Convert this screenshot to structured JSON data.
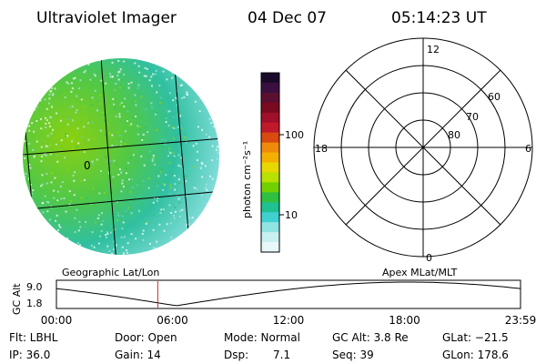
{
  "header": {
    "instrument": "Ultraviolet Imager",
    "date": "04 Dec 07",
    "time": "05:14:23 UT"
  },
  "geo_map": {
    "annotation": "0"
  },
  "colorbar": {
    "unit_label": "photon cm⁻²s⁻¹",
    "ticks": [
      "100",
      "10"
    ],
    "colors": [
      "#1a0a2a",
      "#3a1040",
      "#5a1030",
      "#7a0a20",
      "#a0102a",
      "#c01a2a",
      "#d84a10",
      "#f08a0a",
      "#f4b000",
      "#e8d800",
      "#b8e000",
      "#70d000",
      "#30c040",
      "#20c090",
      "#40d0d0",
      "#90e4e4",
      "#c8f0f0",
      "#e8f8f8"
    ]
  },
  "polar": {
    "mlt_labels": [
      "12",
      "18",
      "6",
      "0"
    ],
    "lat_labels": [
      "60",
      "70",
      "80"
    ]
  },
  "timeline": {
    "left_label": "Geographic Lat/Lon",
    "right_label": "Apex MLat/MLT",
    "y_axis_label": "GC Alt",
    "y_ticks": [
      "9.0",
      "1.8"
    ],
    "x_ticks": [
      "00:00",
      "06:00",
      "12:00",
      "18:00",
      "23:59"
    ],
    "marker_time_hours": 5.24,
    "marker_color": "#cc2222"
  },
  "info": {
    "flt": "Flt: LBHL",
    "ip": "IP: 36.0",
    "door": "Door: Open",
    "gain": "Gain: 14",
    "mode": "Mode: Normal",
    "dsp": "Dsp:",
    "dsp_val": "7.1",
    "gc_alt": "GC Alt: 3.8 Re",
    "seq": "Seq: 39",
    "glat": "GLat: −21.5",
    "glon": "GLon: 178.6"
  }
}
